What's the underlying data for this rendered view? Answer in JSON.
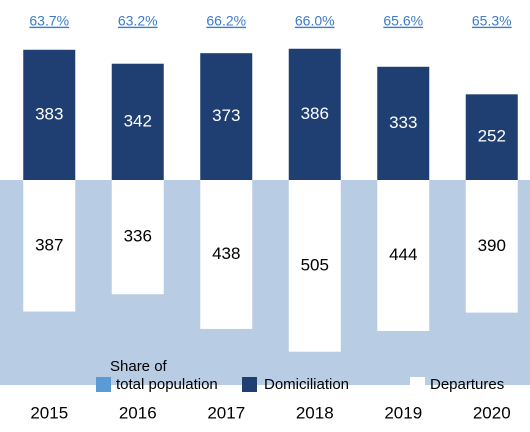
{
  "chart_data": {
    "type": "diverging-bar",
    "categories": [
      "2015",
      "2016",
      "2017",
      "2018",
      "2019",
      "2020"
    ],
    "series": [
      {
        "name": "Share of total population",
        "color": "#5b9bd5",
        "values": [
          63.7,
          63.2,
          66.2,
          66.0,
          65.6,
          65.3
        ],
        "value_labels": [
          "63.7%",
          "63.2%",
          "66.2%",
          "66.0%",
          "65.6%",
          "65.3%"
        ]
      },
      {
        "name": "Domiciliation",
        "color": "#1f3f73",
        "values": [
          383,
          342,
          373,
          386,
          333,
          252
        ]
      },
      {
        "name": "Departures",
        "color": "#ffffff",
        "values": [
          387,
          336,
          438,
          505,
          444,
          390
        ]
      }
    ],
    "background_color": "#b8cce4"
  }
}
